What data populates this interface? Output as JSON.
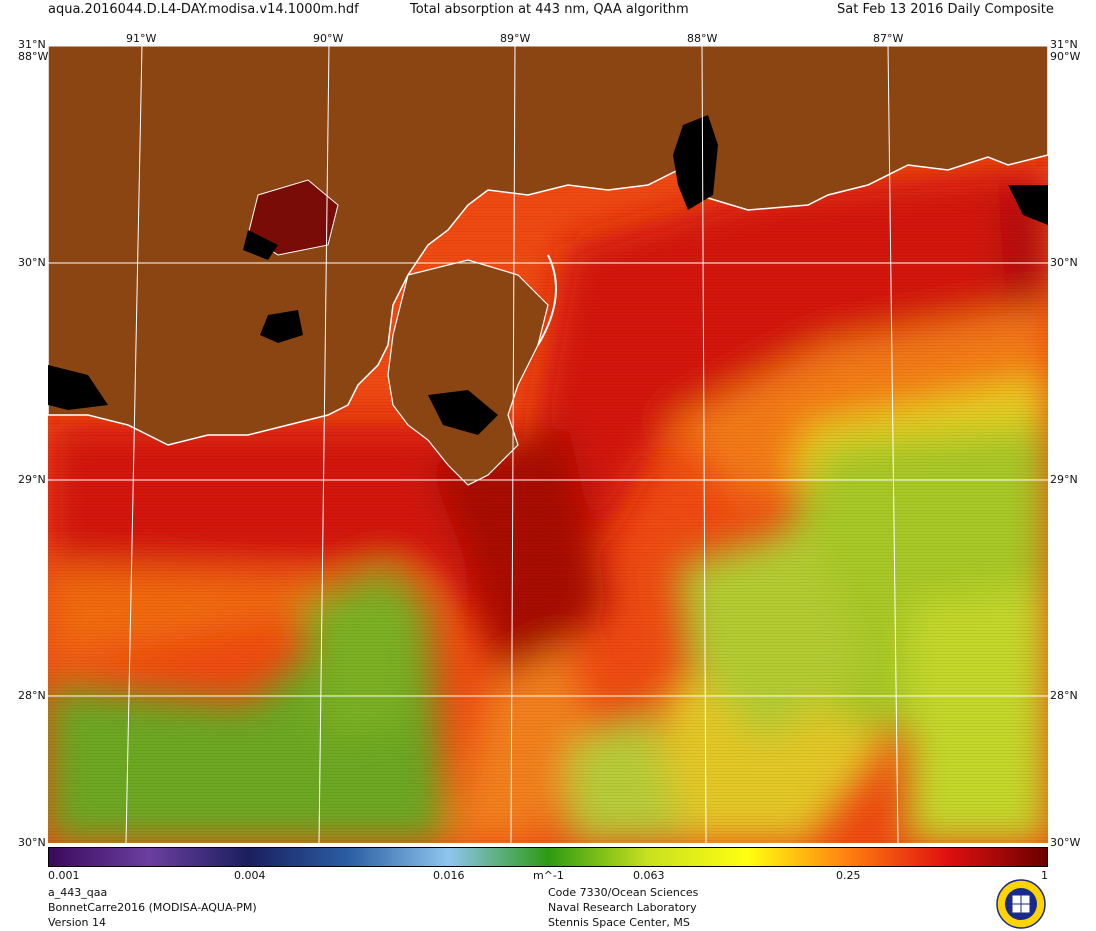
{
  "header": {
    "filename": "aqua.2016044.D.L4-DAY.modisa.v14.1000m.hdf",
    "title": "Total absorption at 443 nm, QAA algorithm",
    "date": "Sat Feb 13 2016 Daily Composite"
  },
  "axes": {
    "top_lon": [
      "91°W",
      "90°W",
      "89°W",
      "88°W",
      "87°W"
    ],
    "left_lat": [
      "31°N",
      "30°N",
      "29°N",
      "28°N",
      "30°N"
    ],
    "right_lat": [
      "31°N",
      "30°N",
      "29°N",
      "28°N",
      "30°W"
    ],
    "corner_tl_bottom": "88°W",
    "corner_tr_bottom": "90°W"
  },
  "colorbar": {
    "ticks": [
      "0.001",
      "0.004",
      "0.016",
      "0.063",
      "0.25",
      "1"
    ],
    "unit": "m^-1",
    "colors": [
      "#3a0a5c",
      "#6b3fa0",
      "#1b1f5e",
      "#2b5ea3",
      "#8fc5ee",
      "#2e9a12",
      "#c8e020",
      "#ffff10",
      "#ff8010",
      "#e01010",
      "#6b0000"
    ]
  },
  "footer": {
    "left": [
      "a_443_qaa",
      "BonnetCarre2016 (MODISA-AQUA-PM)",
      "Version 14"
    ],
    "right": [
      "Code 7330/Ocean Sciences",
      "Naval Research Laboratory",
      "Stennis Space Center, MS"
    ]
  },
  "palette": {
    "land": "#8b4513",
    "nodata": "#000000",
    "grid": "#ffffff"
  }
}
